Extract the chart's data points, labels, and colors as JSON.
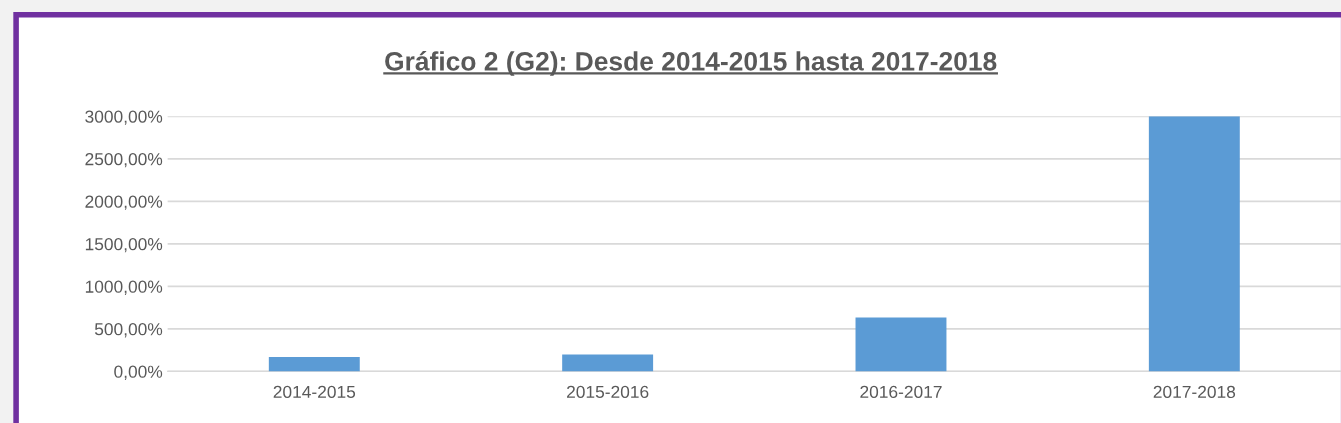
{
  "chart_data": {
    "type": "bar",
    "title": "Gráfico 2 (G2): Desde 2014-2015 hasta 2017-2018",
    "categories": [
      "2014-2015",
      "2015-2016",
      "2016-2017",
      "2017-2018"
    ],
    "values": [
      170,
      200,
      635,
      3000
    ],
    "color": "#5b9bd5",
    "ylim": [
      0,
      3000
    ],
    "yticks": [
      {
        "value": 0,
        "label": "0,00%"
      },
      {
        "value": 500,
        "label": "500,00%"
      },
      {
        "value": 1000,
        "label": "1000,00%"
      },
      {
        "value": 1500,
        "label": "1500,00%"
      },
      {
        "value": 2000,
        "label": "2000,00%"
      },
      {
        "value": 2500,
        "label": "2500,00%"
      },
      {
        "value": 3000,
        "label": "3000,00%"
      }
    ],
    "grid": "y"
  }
}
